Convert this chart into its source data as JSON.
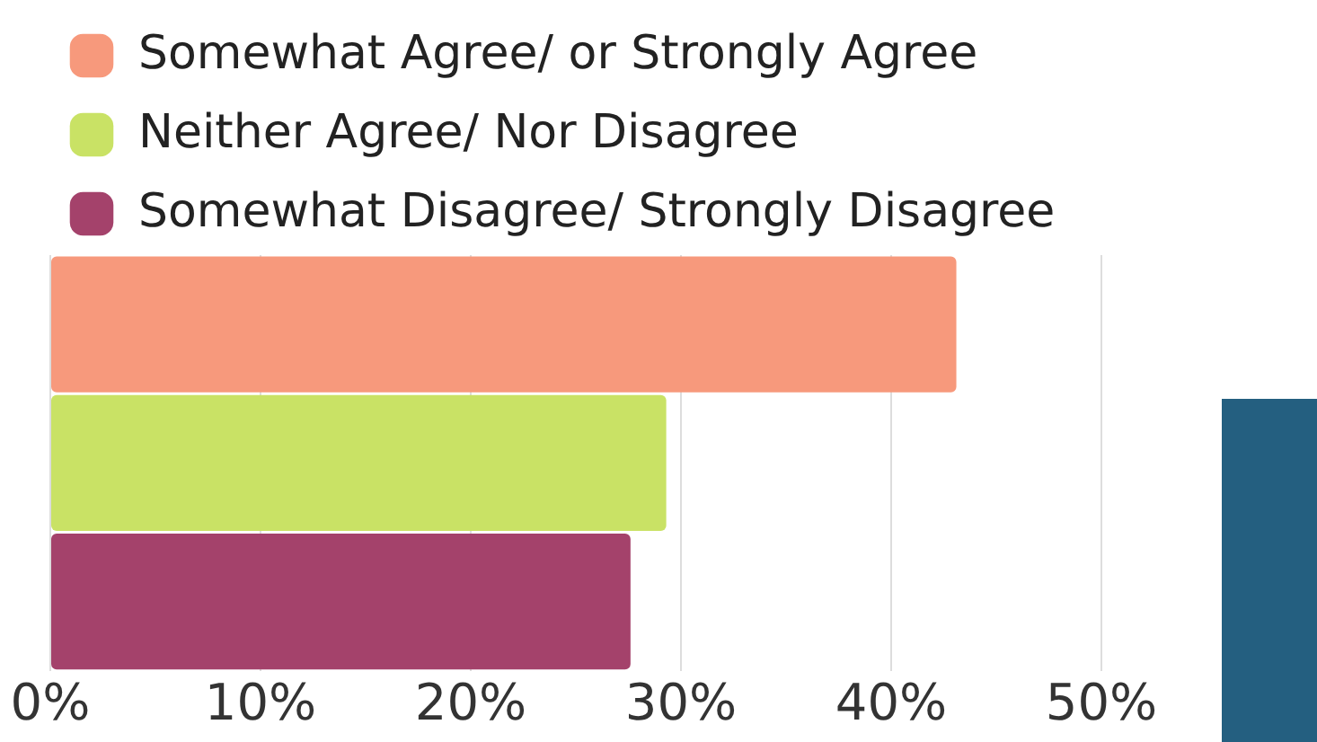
{
  "chart_data": {
    "type": "bar",
    "orientation": "horizontal",
    "categories": [
      null
    ],
    "series": [
      {
        "name": "Somewhat Agree/ or Strongly Agree",
        "color": "#f7997c",
        "values": [
          43.1
        ]
      },
      {
        "name": "Neither Agree/ Nor Disagree",
        "color": "#c9e265",
        "values": [
          29.3
        ]
      },
      {
        "name": "Somewhat Disagree/ Strongly Disagree",
        "color": "#a4426b",
        "values": [
          27.6
        ]
      }
    ],
    "xlim": [
      0,
      50
    ],
    "xticks": [
      {
        "value": 0,
        "label": "0%"
      },
      {
        "value": 10,
        "label": "10%"
      },
      {
        "value": 20,
        "label": "20%"
      },
      {
        "value": 30,
        "label": "30%"
      },
      {
        "value": 40,
        "label": "40%"
      },
      {
        "value": 50,
        "label": "50%"
      }
    ],
    "grid": "x",
    "legend": "top left"
  }
}
